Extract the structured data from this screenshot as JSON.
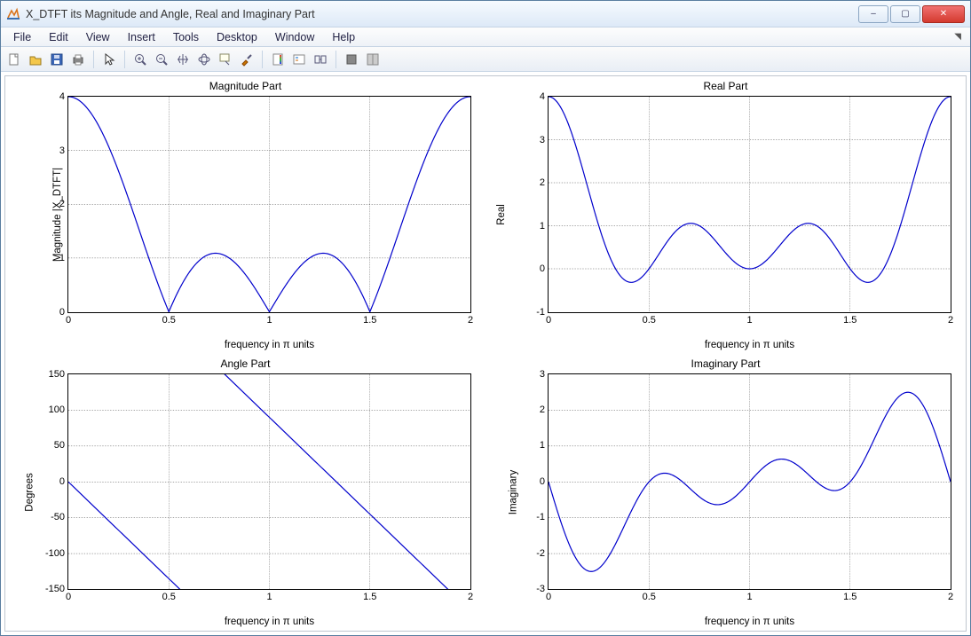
{
  "window": {
    "title": "X_DTFT its Magnitude and Angle, Real and Imaginary Part",
    "minimize": "–",
    "maximize": "▢",
    "close": "✕"
  },
  "menus": [
    "File",
    "Edit",
    "View",
    "Insert",
    "Tools",
    "Desktop",
    "Window",
    "Help"
  ],
  "toolbar_icons": [
    "new-file-icon",
    "open-file-icon",
    "save-icon",
    "print-icon",
    "sep",
    "pointer-icon",
    "sep",
    "zoom-in-icon",
    "zoom-out-icon",
    "pan-icon",
    "rotate3d-icon",
    "data-cursor-icon",
    "brush-icon",
    "sep",
    "insert-colorbar-icon",
    "insert-legend-icon",
    "link-plot-icon",
    "sep",
    "hide-plot-tools-icon",
    "show-plot-tools-icon"
  ],
  "xlabel_common": "frequency in π units",
  "xlim": [
    0,
    2
  ],
  "xticks": [
    0,
    0.5,
    1,
    1.5,
    2
  ],
  "xtick_labels": [
    "0",
    "0.5",
    "1",
    "1.5",
    "2"
  ],
  "line_color": "#0000cc",
  "grid_color": "#000000",
  "background_color": "#ffffff",
  "subplots": [
    {
      "id": "magnitude",
      "title": "Magnitude Part",
      "ylabel": "Magnitude |X_DTFT|",
      "ylim": [
        0,
        4
      ],
      "yticks": [
        0,
        1,
        2,
        3,
        4
      ],
      "ytick_labels": [
        "0",
        "1",
        "2",
        "3",
        "4"
      ],
      "curve": "abs(1+cos(pi*x)+cos(2*pi*x)+cos(3*pi*x))"
    },
    {
      "id": "real",
      "title": "Real Part",
      "ylabel": "Real",
      "ylim": [
        -1,
        4
      ],
      "yticks": [
        -1,
        0,
        1,
        2,
        3,
        4
      ],
      "ytick_labels": [
        "-1",
        "0",
        "1",
        "2",
        "3",
        "4"
      ],
      "curve": "1+cos(pi*x)+cos(2*pi*x)+cos(3*pi*x)"
    },
    {
      "id": "angle",
      "title": "Angle Part",
      "ylabel": "Degrees",
      "ylim": [
        -150,
        150
      ],
      "yticks": [
        -150,
        -100,
        -50,
        0,
        50,
        100,
        150
      ],
      "ytick_labels": [
        "-150",
        "-100",
        "-50",
        "0",
        "50",
        "100",
        "150"
      ],
      "curve": "angle_deg"
    },
    {
      "id": "imaginary",
      "title": "Imaginary Part",
      "ylabel": "Imaginary",
      "ylim": [
        -3,
        3
      ],
      "yticks": [
        -3,
        -2,
        -1,
        0,
        1,
        2,
        3
      ],
      "ytick_labels": [
        "-3",
        "-2",
        "-1",
        "0",
        "1",
        "2",
        "3"
      ],
      "curve": "-(sin(pi*x)+sin(2*pi*x)+sin(3*pi*x))"
    }
  ]
}
